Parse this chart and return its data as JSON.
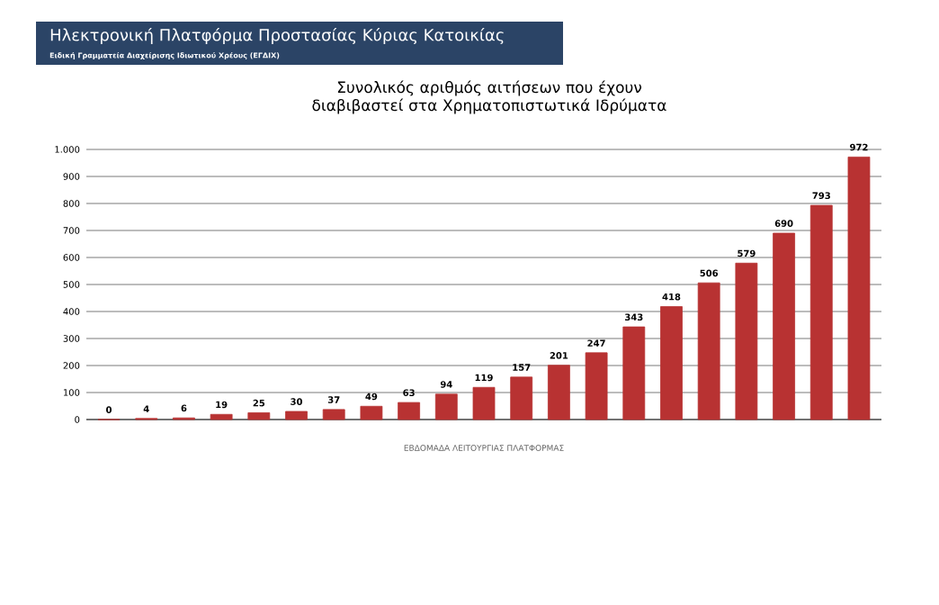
{
  "chart_data": {
    "type": "bar",
    "title": "Συνολικός αριθμός αιτήσεων που έχουν διαβιβαστεί στα Χρηματοπιστωτικά Ιδρύματα",
    "xlabel": "ΕΒΔΟΜΑΔΑ ΛΕΙΤΟΥΡΓΙΑΣ ΠΛΑΤΦΟΡΜΑΣ",
    "annotations": [
      "Ηλεκτρονική Πλατφόρμα Προστασίας Κύριας Κατοικίας",
      "Ειδική Γραμματεία Διαχείρισης Ιδιωτικού Χρέους (ΕΓΔΙΧ)"
    ],
    "categories": [
      null,
      null,
      null,
      null,
      null,
      null,
      null,
      null,
      null,
      null,
      null,
      null,
      null,
      null,
      null,
      null,
      null,
      null,
      null,
      null,
      null
    ],
    "values": [
      0,
      4,
      6,
      19,
      25,
      30,
      37,
      49,
      63,
      94,
      119,
      157,
      201,
      247,
      343,
      418,
      506,
      579,
      690,
      793,
      972
    ],
    "color": "#b83232",
    "ylim": [
      0,
      1000
    ],
    "yticks": [
      0,
      100,
      200,
      300,
      400,
      500,
      600,
      700,
      800,
      900,
      {
        "value": 1000,
        "label": "1.000"
      }
    ],
    "grid": "y",
    "data_labels": true
  }
}
